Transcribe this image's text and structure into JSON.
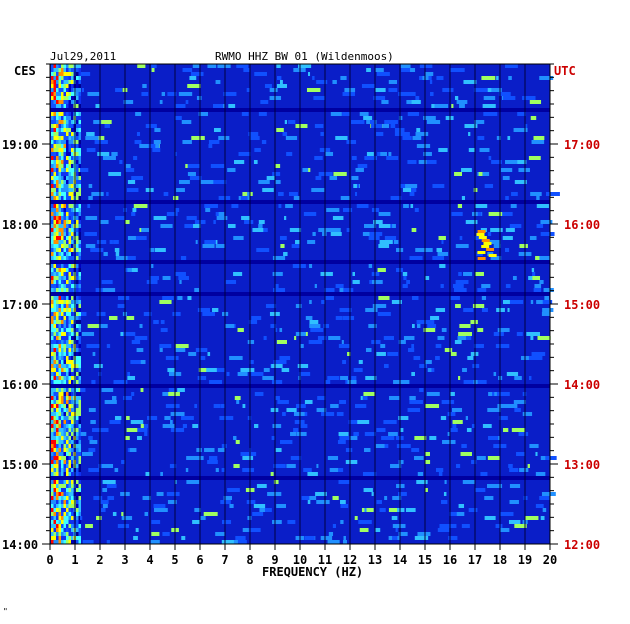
{
  "chart_data": {
    "type": "heatmap",
    "title": "RWMO HHZ BW 01 (Wildenmoos)",
    "date": "Jul29,2011",
    "left_tz": "CES",
    "right_tz": "UTC",
    "xlabel": "FREQUENCY (HZ)",
    "x_ticks": [
      "0",
      "1",
      "2",
      "3",
      "4",
      "5",
      "6",
      "7",
      "8",
      "9",
      "10",
      "11",
      "12",
      "13",
      "14",
      "15",
      "16",
      "17",
      "18",
      "19",
      "20"
    ],
    "xlim": [
      0,
      20
    ],
    "left_ticks": [
      "14:00",
      "15:00",
      "16:00",
      "17:00",
      "18:00",
      "19:00"
    ],
    "right_ticks": [
      "12:00",
      "13:00",
      "14:00",
      "15:00",
      "16:00",
      "17:00"
    ],
    "ylim_left": [
      "14:00",
      "20:00"
    ],
    "ylim_right": [
      "12:00",
      "18:00"
    ],
    "colormap": [
      "#000080",
      "#0000ff",
      "#00ffff",
      "#ffff00",
      "#ff0000",
      "#800000"
    ],
    "features": [
      {
        "description_freq_hz": [
          0,
          1.2
        ],
        "intensity": "high"
      },
      {
        "description_freq_hz": [
          17,
          17.6
        ],
        "intensity": "medium"
      }
    ],
    "footer_mark": "\""
  },
  "colors": {
    "tick_left": "#000000",
    "tick_right": "#cc0000",
    "utc_label": "#cc0000"
  }
}
